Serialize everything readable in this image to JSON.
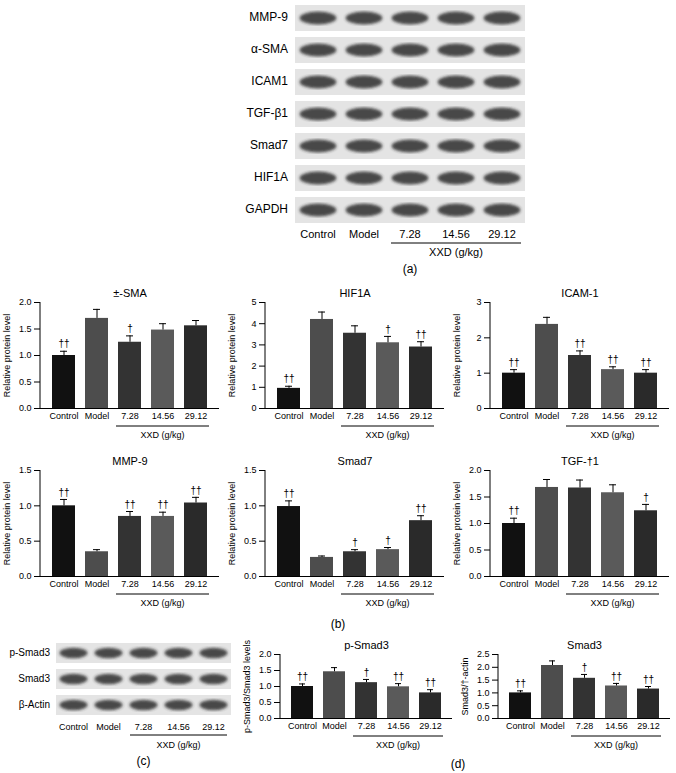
{
  "panel_labels": {
    "a": "(a)",
    "b": "(b)",
    "c": "(c)",
    "d": "(d)"
  },
  "blot_a": {
    "rows": [
      "MMP-9",
      "α-SMA",
      "ICAM1",
      "TGF-β1",
      "Smad7",
      "HIF1A",
      "GAPDH"
    ],
    "lanes": [
      "Control",
      "Model",
      "7.28",
      "14.56",
      "29.12"
    ],
    "group_label": "XXD (g/kg)"
  },
  "blot_c": {
    "rows": [
      "p-Smad3",
      "Smad3",
      "β-Actin"
    ],
    "lanes": [
      "Control",
      "Model",
      "7.28",
      "14.56",
      "29.12"
    ],
    "group_label": "XXD (g/kg)"
  },
  "chart_data": [
    {
      "type": "bar",
      "title": "±-SMA",
      "y_label": "Relative protein level",
      "x_group_label": "XXD (g/kg)",
      "categories": [
        "Control",
        "Model",
        "7.28",
        "14.56",
        "29.12"
      ],
      "values": [
        1.0,
        1.7,
        1.25,
        1.48,
        1.56
      ],
      "errors": [
        0.08,
        0.17,
        0.12,
        0.12,
        0.1
      ],
      "annotations": [
        "††",
        null,
        "†",
        null,
        null
      ],
      "colors": [
        "#111111",
        "#4d4d4d",
        "#333333",
        "#5a5a5a",
        "#2a2a2a"
      ],
      "ylim": [
        0,
        2
      ],
      "yticks": [
        {
          "value": 0,
          "label": "0.0"
        },
        {
          "value": 0.5,
          "label": "0.5"
        },
        {
          "value": 1,
          "label": "1.0"
        },
        {
          "value": 1.5,
          "label": "1.5"
        },
        {
          "value": 2,
          "label": "2.0"
        }
      ]
    },
    {
      "type": "bar",
      "title": "HIF1A",
      "y_label": "Relative protein level",
      "x_group_label": "XXD (g/kg)",
      "categories": [
        "Control",
        "Model",
        "7.28",
        "14.56",
        "29.12"
      ],
      "values": [
        0.95,
        4.2,
        3.55,
        3.1,
        2.9
      ],
      "errors": [
        0.1,
        0.35,
        0.35,
        0.3,
        0.25
      ],
      "annotations": [
        "††",
        null,
        null,
        "†",
        "††"
      ],
      "colors": [
        "#111111",
        "#4d4d4d",
        "#333333",
        "#5a5a5a",
        "#2a2a2a"
      ],
      "ylim": [
        0,
        5
      ],
      "yticks": [
        0,
        1,
        2,
        3,
        4,
        5
      ]
    },
    {
      "type": "bar",
      "title": "ICAM-1",
      "y_label": "Relative protein level",
      "x_group_label": "XXD (g/kg)",
      "categories": [
        "Control",
        "Model",
        "7.28",
        "14.56",
        "29.12"
      ],
      "values": [
        1.0,
        2.38,
        1.5,
        1.1,
        1.0
      ],
      "errors": [
        0.1,
        0.2,
        0.13,
        0.08,
        0.1
      ],
      "annotations": [
        "††",
        null,
        "††",
        "††",
        "††"
      ],
      "colors": [
        "#111111",
        "#4d4d4d",
        "#333333",
        "#5a5a5a",
        "#2a2a2a"
      ],
      "ylim": [
        0,
        3
      ],
      "yticks": [
        0,
        1,
        2,
        3
      ]
    },
    {
      "type": "bar",
      "title": "MMP-9",
      "y_label": "Relative protein level",
      "x_group_label": "XXD (g/kg)",
      "categories": [
        "Control",
        "Model",
        "7.28",
        "14.56",
        "29.12"
      ],
      "values": [
        1.0,
        0.35,
        0.85,
        0.85,
        1.04
      ],
      "errors": [
        0.09,
        0.03,
        0.07,
        0.06,
        0.08
      ],
      "annotations": [
        "††",
        null,
        "††",
        "††",
        "††"
      ],
      "colors": [
        "#111111",
        "#4d4d4d",
        "#333333",
        "#5a5a5a",
        "#2a2a2a"
      ],
      "ylim": [
        0,
        1.5
      ],
      "yticks": [
        {
          "value": 0,
          "label": "0.0"
        },
        {
          "value": 0.5,
          "label": "0.5"
        },
        {
          "value": 1,
          "label": "1.0"
        },
        {
          "value": 1.5,
          "label": "1.5"
        }
      ]
    },
    {
      "type": "bar",
      "title": "Smad7",
      "y_label": "Relative protein level",
      "x_group_label": "XXD (g/kg)",
      "categories": [
        "Control",
        "Model",
        "7.28",
        "14.56",
        "29.12"
      ],
      "values": [
        0.99,
        0.27,
        0.35,
        0.38,
        0.79
      ],
      "errors": [
        0.08,
        0.02,
        0.03,
        0.03,
        0.07
      ],
      "annotations": [
        "††",
        null,
        "†",
        "†",
        "††"
      ],
      "colors": [
        "#111111",
        "#4d4d4d",
        "#333333",
        "#5a5a5a",
        "#2a2a2a"
      ],
      "ylim": [
        0,
        1.5
      ],
      "yticks": [
        {
          "value": 0,
          "label": "0.0"
        },
        {
          "value": 0.5,
          "label": "0.5"
        },
        {
          "value": 1,
          "label": "1.0"
        },
        {
          "value": 1.5,
          "label": "1.5"
        }
      ]
    },
    {
      "type": "bar",
      "title": "TGF-†1",
      "y_label": "Relative protein level",
      "x_group_label": "XXD (g/kg)",
      "categories": [
        "Control",
        "Model",
        "7.28",
        "14.56",
        "29.12"
      ],
      "values": [
        1.0,
        1.68,
        1.67,
        1.58,
        1.24
      ],
      "errors": [
        0.1,
        0.15,
        0.15,
        0.15,
        0.12
      ],
      "annotations": [
        "††",
        null,
        null,
        null,
        "†"
      ],
      "colors": [
        "#111111",
        "#4d4d4d",
        "#333333",
        "#5a5a5a",
        "#2a2a2a"
      ],
      "ylim": [
        0,
        2
      ],
      "yticks": [
        {
          "value": 0,
          "label": "0.0"
        },
        {
          "value": 0.5,
          "label": "0.5"
        },
        {
          "value": 1,
          "label": "1.0"
        },
        {
          "value": 1.5,
          "label": "1.5"
        },
        {
          "value": 2,
          "label": "2.0"
        }
      ]
    },
    {
      "type": "bar",
      "title": "p-Smad3",
      "y_label": "p-Smad3/Smad3 levels",
      "x_group_label": "XXD (g/kg)",
      "categories": [
        "Control",
        "Model",
        "7.28",
        "14.56",
        "29.12"
      ],
      "values": [
        1.0,
        1.46,
        1.12,
        0.99,
        0.8
      ],
      "errors": [
        0.08,
        0.13,
        0.1,
        0.1,
        0.1
      ],
      "annotations": [
        "††",
        null,
        "†",
        "††",
        "††"
      ],
      "colors": [
        "#111111",
        "#4d4d4d",
        "#333333",
        "#5a5a5a",
        "#2a2a2a"
      ],
      "ylim": [
        0,
        2
      ],
      "yticks": [
        {
          "value": 0,
          "label": "0.0"
        },
        {
          "value": 0.5,
          "label": "0.5"
        },
        {
          "value": 1,
          "label": "1.0"
        },
        {
          "value": 1.5,
          "label": "1.5"
        },
        {
          "value": 2,
          "label": "2.0"
        }
      ]
    },
    {
      "type": "bar",
      "title": "Smad3",
      "y_label": "Smad3/†-actin",
      "x_group_label": "XXD (g/kg)",
      "categories": [
        "Control",
        "Model",
        "7.28",
        "14.56",
        "29.12"
      ],
      "values": [
        1.0,
        2.07,
        1.57,
        1.27,
        1.15
      ],
      "errors": [
        0.08,
        0.18,
        0.15,
        0.1,
        0.1
      ],
      "annotations": [
        "††",
        null,
        "†",
        "††",
        "††"
      ],
      "colors": [
        "#111111",
        "#4d4d4d",
        "#333333",
        "#5a5a5a",
        "#2a2a2a"
      ],
      "ylim": [
        0,
        2.5
      ],
      "yticks": [
        {
          "value": 0,
          "label": "0.0"
        },
        {
          "value": 0.5,
          "label": "0.5"
        },
        {
          "value": 1,
          "label": "1.0"
        },
        {
          "value": 1.5,
          "label": "1.5"
        },
        {
          "value": 2,
          "label": "2.0"
        },
        {
          "value": 2.5,
          "label": "2.5"
        }
      ]
    }
  ]
}
